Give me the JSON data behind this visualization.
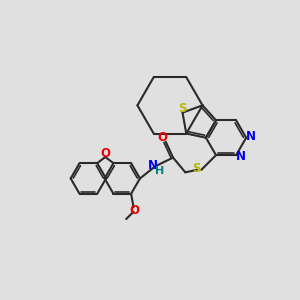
{
  "background_color": "#e0e0e0",
  "bond_color": "#2a2a2a",
  "atom_colors": {
    "S": "#b8b800",
    "N": "#0000ee",
    "O": "#ee0000",
    "H": "#008080",
    "C": "#2a2a2a"
  },
  "figsize": [
    3.0,
    3.0
  ],
  "dpi": 100,
  "scale": 1.0
}
